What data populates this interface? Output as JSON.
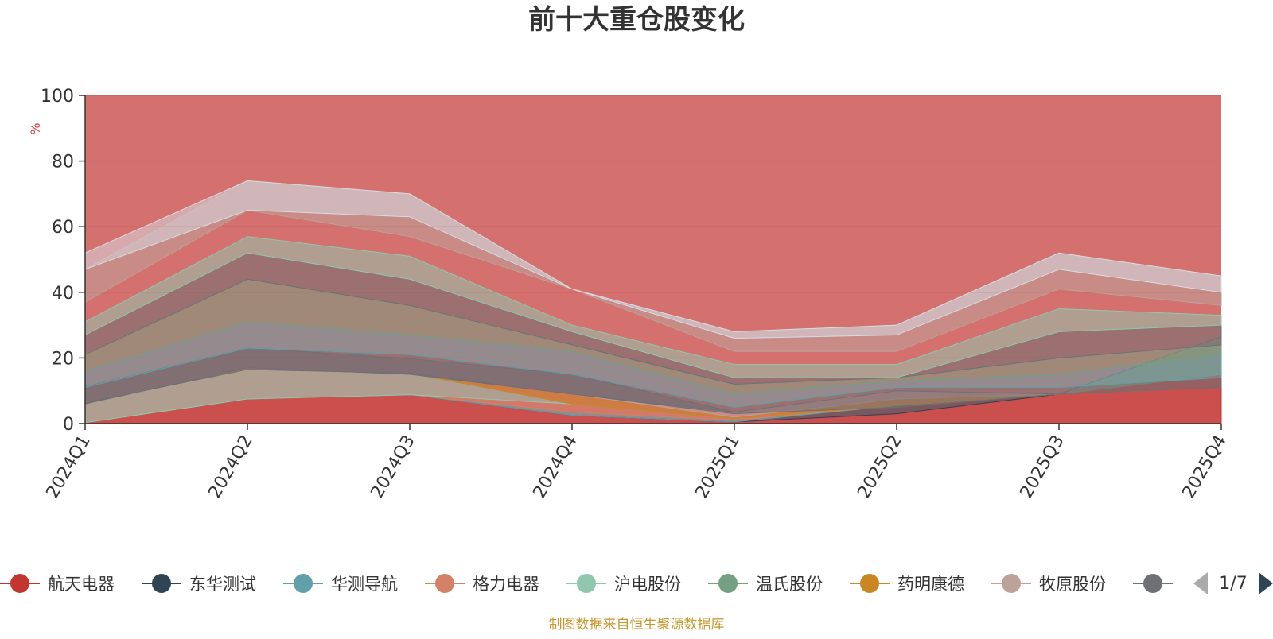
{
  "chart_data": {
    "type": "area",
    "title": "前十大重仓股变化",
    "ylabel": "%",
    "ylim": [
      0,
      100
    ],
    "yticks": [
      0,
      20,
      40,
      60,
      80,
      100
    ],
    "grid": true,
    "categories": [
      "2024Q1",
      "2024Q2",
      "2024Q3",
      "2024Q4",
      "2025Q1",
      "2025Q2",
      "2025Q3",
      "2025Q4"
    ],
    "series": [
      {
        "name": "航天电器",
        "color": "#c23531",
        "values": [
          0.3,
          7.5,
          8.8,
          2.5,
          0.5,
          3.0,
          9.0,
          15.0
        ]
      },
      {
        "name": "东华测试",
        "color": "#2f4554",
        "values": [
          0,
          0,
          0,
          0,
          0,
          2.5,
          0,
          0
        ]
      },
      {
        "name": "华测导航",
        "color": "#61a0a8",
        "values": [
          0,
          0,
          0,
          1.0,
          0.5,
          0,
          0,
          0
        ]
      },
      {
        "name": "格力电器",
        "color": "#d48265",
        "values": [
          0,
          0,
          0,
          2.5,
          0.5,
          0,
          0,
          0
        ]
      },
      {
        "name": "沪电股份",
        "color": "#91c7ae",
        "values": [
          6.0,
          9.0,
          6.5,
          0,
          0,
          0,
          0,
          0
        ]
      },
      {
        "name": "温氏股份",
        "color": "#749f83",
        "values": [
          0,
          0,
          0,
          0,
          0,
          0,
          0,
          11.5
        ]
      },
      {
        "name": "药明康德",
        "color": "#ca8622",
        "values": [
          0,
          0,
          0,
          3.0,
          0.5,
          2.0,
          0,
          0
        ]
      },
      {
        "name": "牧原股份",
        "color": "#bda29a",
        "values": [
          0,
          0,
          0,
          0,
          1.5,
          2.5,
          0,
          0
        ]
      },
      {
        "name": "",
        "color": "#6e7074",
        "values": [
          5.0,
          6.5,
          4.5,
          6.0,
          0,
          0,
          0,
          0
        ]
      }
    ],
    "background_series_color": "#d4706e",
    "legend_position": "bottom",
    "legend_page": "1/7"
  },
  "footer": {
    "source_note": "制图数据来自恒生聚源数据库"
  }
}
